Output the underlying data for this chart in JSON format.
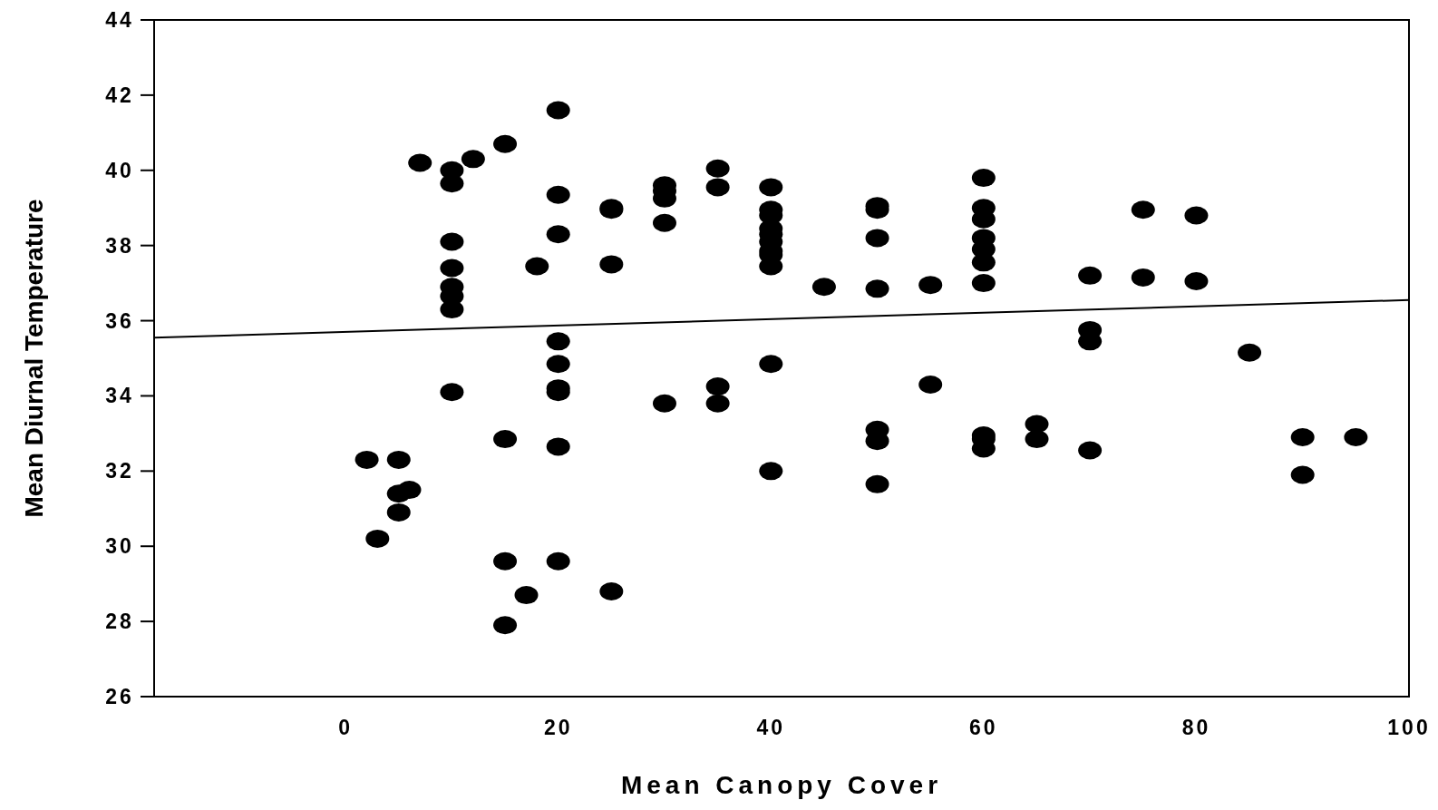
{
  "chart_data": {
    "type": "scatter",
    "xlabel": "Mean Canopy Cover",
    "ylabel": "Mean Diurnal Temperature",
    "xlim": [
      -18,
      100
    ],
    "xticks": [
      0,
      20,
      40,
      60,
      80,
      100
    ],
    "ylim": [
      26,
      44
    ],
    "yticks": [
      26,
      28,
      30,
      32,
      34,
      36,
      38,
      40,
      42,
      44
    ],
    "grid": false,
    "marker": "circle",
    "series": [
      {
        "color": "#000000",
        "x": [
          2,
          3,
          5,
          5,
          5,
          6,
          7,
          10,
          10,
          10,
          10,
          10,
          10,
          10,
          10,
          12,
          15,
          15,
          15,
          15,
          17,
          18,
          20,
          20,
          20,
          20,
          20,
          20,
          20,
          20,
          20,
          25,
          25,
          25,
          25,
          30,
          30,
          30,
          30,
          30,
          35,
          35,
          35,
          35,
          40,
          40,
          40,
          40,
          40,
          40,
          40,
          40,
          40,
          40,
          40,
          45,
          50,
          50,
          50,
          50,
          50,
          50,
          50,
          55,
          55,
          60,
          60,
          60,
          60,
          60,
          60,
          60,
          60,
          60,
          60,
          65,
          65,
          70,
          70,
          70,
          70,
          75,
          75,
          80,
          80,
          85,
          90,
          90,
          95
        ],
        "values": [
          32.3,
          30.2,
          32.3,
          31.4,
          30.9,
          31.5,
          40.2,
          40.0,
          39.65,
          38.1,
          37.4,
          36.9,
          36.65,
          36.3,
          34.1,
          40.3,
          40.7,
          32.85,
          29.6,
          27.9,
          28.7,
          37.45,
          41.6,
          39.35,
          38.3,
          35.45,
          34.85,
          34.2,
          34.1,
          32.65,
          29.6,
          39.0,
          38.95,
          37.5,
          28.8,
          39.6,
          39.45,
          39.25,
          38.6,
          33.8,
          40.05,
          39.55,
          34.25,
          33.8,
          39.55,
          38.95,
          38.8,
          38.45,
          38.3,
          38.1,
          37.85,
          37.75,
          37.45,
          34.85,
          32.0,
          36.9,
          39.05,
          38.95,
          38.2,
          36.85,
          33.1,
          32.8,
          31.65,
          36.95,
          34.3,
          39.8,
          39.0,
          38.7,
          38.2,
          37.9,
          37.55,
          37.0,
          32.95,
          32.85,
          32.6,
          33.25,
          32.85,
          37.2,
          35.75,
          35.45,
          32.55,
          38.95,
          37.15,
          38.8,
          37.05,
          35.15,
          32.9,
          31.9,
          32.9
        ]
      },
      {
        "type": "line",
        "color": "#000000",
        "marker": "none",
        "x": [
          -18,
          100
        ],
        "values": [
          35.55,
          36.55
        ]
      }
    ]
  }
}
